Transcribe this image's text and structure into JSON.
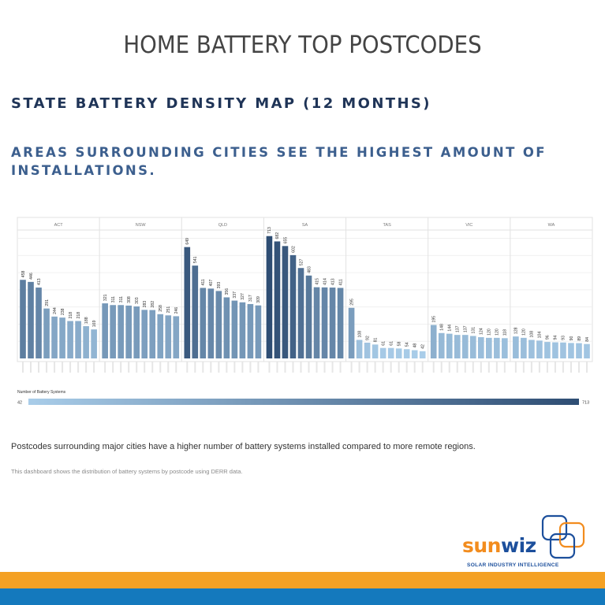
{
  "header": {
    "title": "HOME BATTERY TOP POSTCODES",
    "subtitle": "STATE BATTERY DENSITY MAP (12 MONTHS)",
    "headline": "AREAS SURROUNDING CITIES SEE THE HIGHEST AMOUNT OF INSTALLATIONS."
  },
  "chart_data": {
    "type": "bar",
    "panels": [
      {
        "state": "ACT",
        "values": [
          458,
          446,
          413,
          291,
          244,
          238,
          218,
          218,
          188,
          169
        ]
      },
      {
        "state": "NSW",
        "values": [
          321,
          311,
          311,
          308,
          303,
          283,
          282,
          258,
          251,
          246
        ]
      },
      {
        "state": "QLD",
        "values": [
          649,
          541,
          411,
          407,
          393,
          356,
          337,
          327,
          317,
          309
        ]
      },
      {
        "state": "SA",
        "values": [
          713,
          682,
          655,
          602,
          527,
          483,
          415,
          414,
          413,
          411
        ]
      },
      {
        "state": "TAS",
        "values": [
          295,
          108,
          92,
          81,
          61,
          61,
          58,
          54,
          48,
          42
        ]
      },
      {
        "state": "VIC",
        "values": [
          195,
          148,
          144,
          137,
          137,
          131,
          124,
          120,
          120,
          118
        ]
      },
      {
        "state": "WA",
        "values": [
          128,
          120,
          108,
          104,
          96,
          94,
          93,
          90,
          89,
          84
        ]
      }
    ],
    "ylim": [
      0,
      730
    ],
    "grid": true,
    "legend": {
      "title": "Number of Battery Systems",
      "min_label": "42",
      "max_label": "713",
      "min": 42,
      "max": 713,
      "color_low": "#a9cde9",
      "color_high": "#2e4d73"
    }
  },
  "body": {
    "text": "Postcodes surrounding major cities have a higher number of battery systems installed compared to more remote regions.",
    "source": "This dashboard shows the distribution of battery systems by postcode using DERR data."
  },
  "logo": {
    "name_sun": "sun",
    "name_wiz": "wiz",
    "tagline": "SOLAR INDUSTRY INTELLIGENCE"
  },
  "colors": {
    "orange": "#f4a124",
    "blue": "#1479bd",
    "logo_orange": "#f28c1e",
    "logo_blue": "#1c4f9c"
  }
}
